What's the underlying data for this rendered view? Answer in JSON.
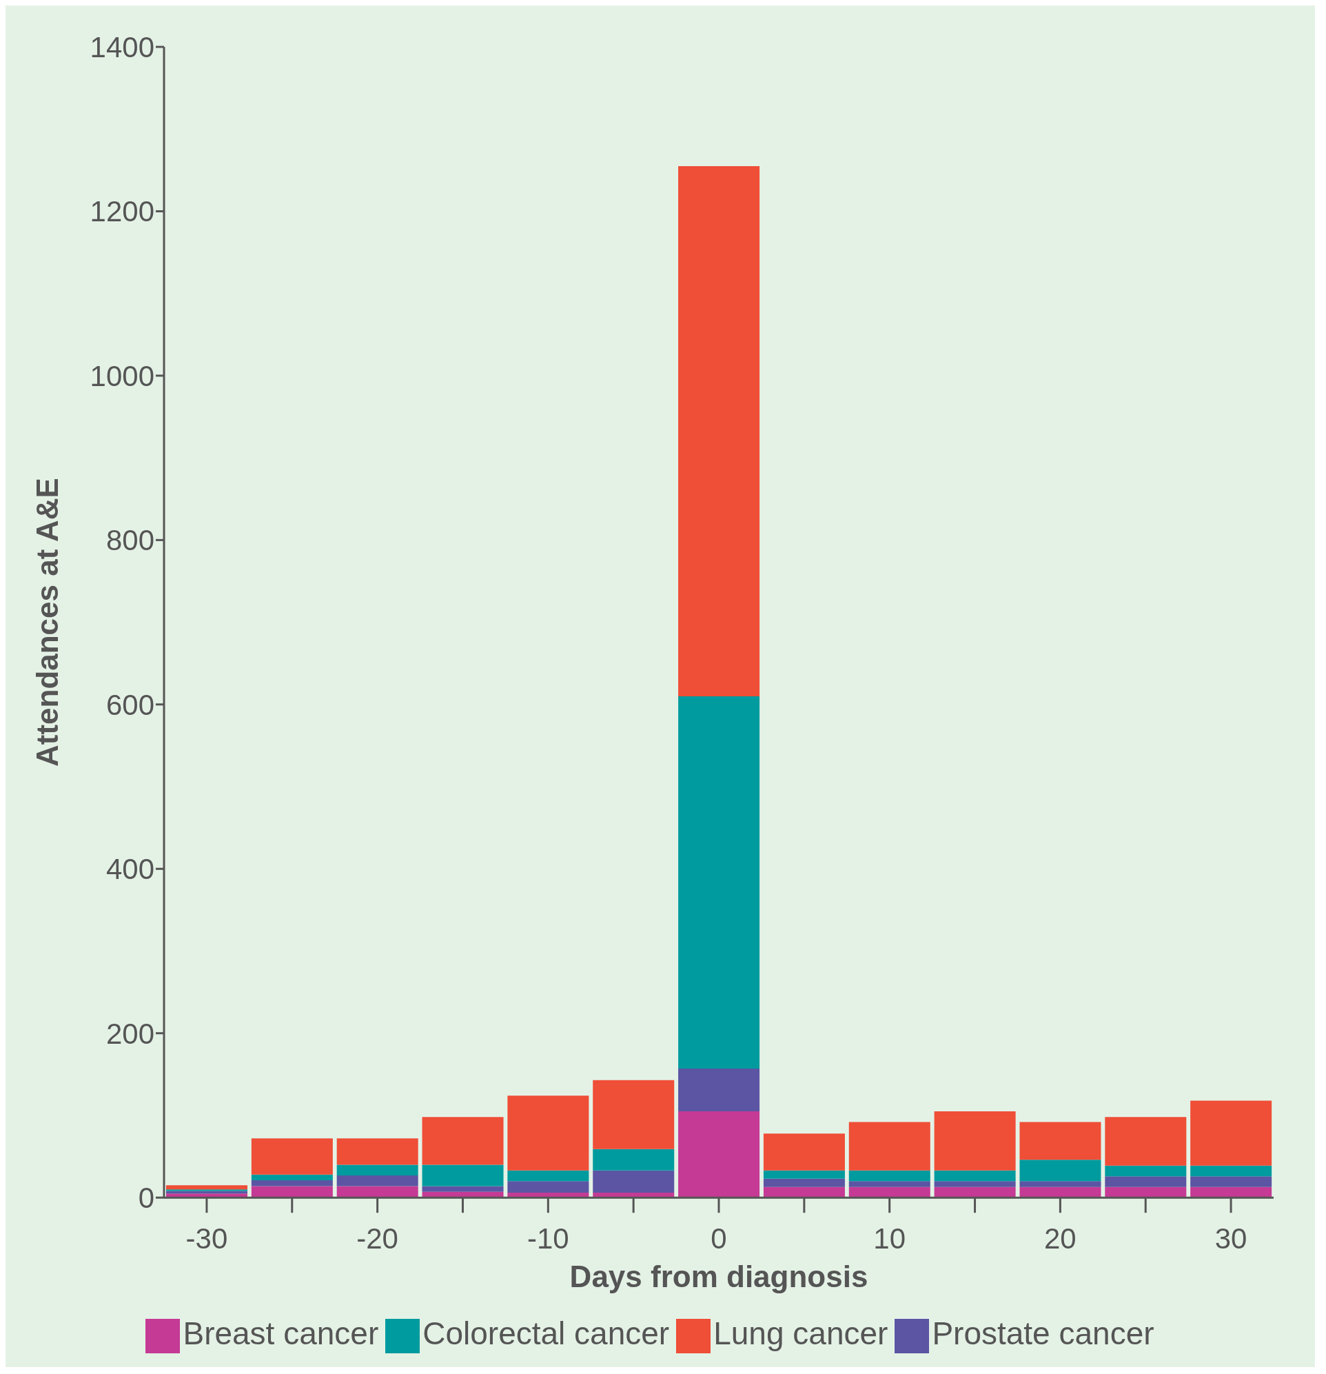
{
  "chart_data": {
    "type": "bar",
    "stacked": true,
    "xlabel": "Days from diagnosis",
    "ylabel": "Attendances at A&E",
    "categories": [
      "-30",
      null,
      "-20",
      null,
      "-10",
      null,
      "0",
      null,
      "10",
      null,
      "20",
      null,
      "30"
    ],
    "series": [
      {
        "name": "Breast cancer",
        "color": "#c53a94",
        "values": [
          5,
          14,
          14,
          7,
          6,
          6,
          105,
          13,
          13,
          13,
          13,
          13,
          13
        ]
      },
      {
        "name": "Prostate cancer",
        "color": "#5b55a3",
        "values": [
          3,
          7,
          13,
          7,
          14,
          27,
          52,
          10,
          7,
          7,
          7,
          13,
          13
        ]
      },
      {
        "name": "Colorectal cancer",
        "color": "#009b9e",
        "values": [
          2,
          7,
          13,
          26,
          13,
          26,
          453,
          10,
          13,
          13,
          26,
          13,
          13
        ]
      },
      {
        "name": "Lung cancer",
        "color": "#ef4e37",
        "values": [
          5,
          44,
          32,
          58,
          91,
          84,
          645,
          45,
          59,
          72,
          46,
          59,
          79
        ]
      }
    ],
    "ylim": [
      0,
      1400
    ],
    "yticks": [
      0,
      200,
      400,
      600,
      800,
      1000,
      1200,
      1400
    ],
    "grid": false,
    "legend": "bottom"
  }
}
